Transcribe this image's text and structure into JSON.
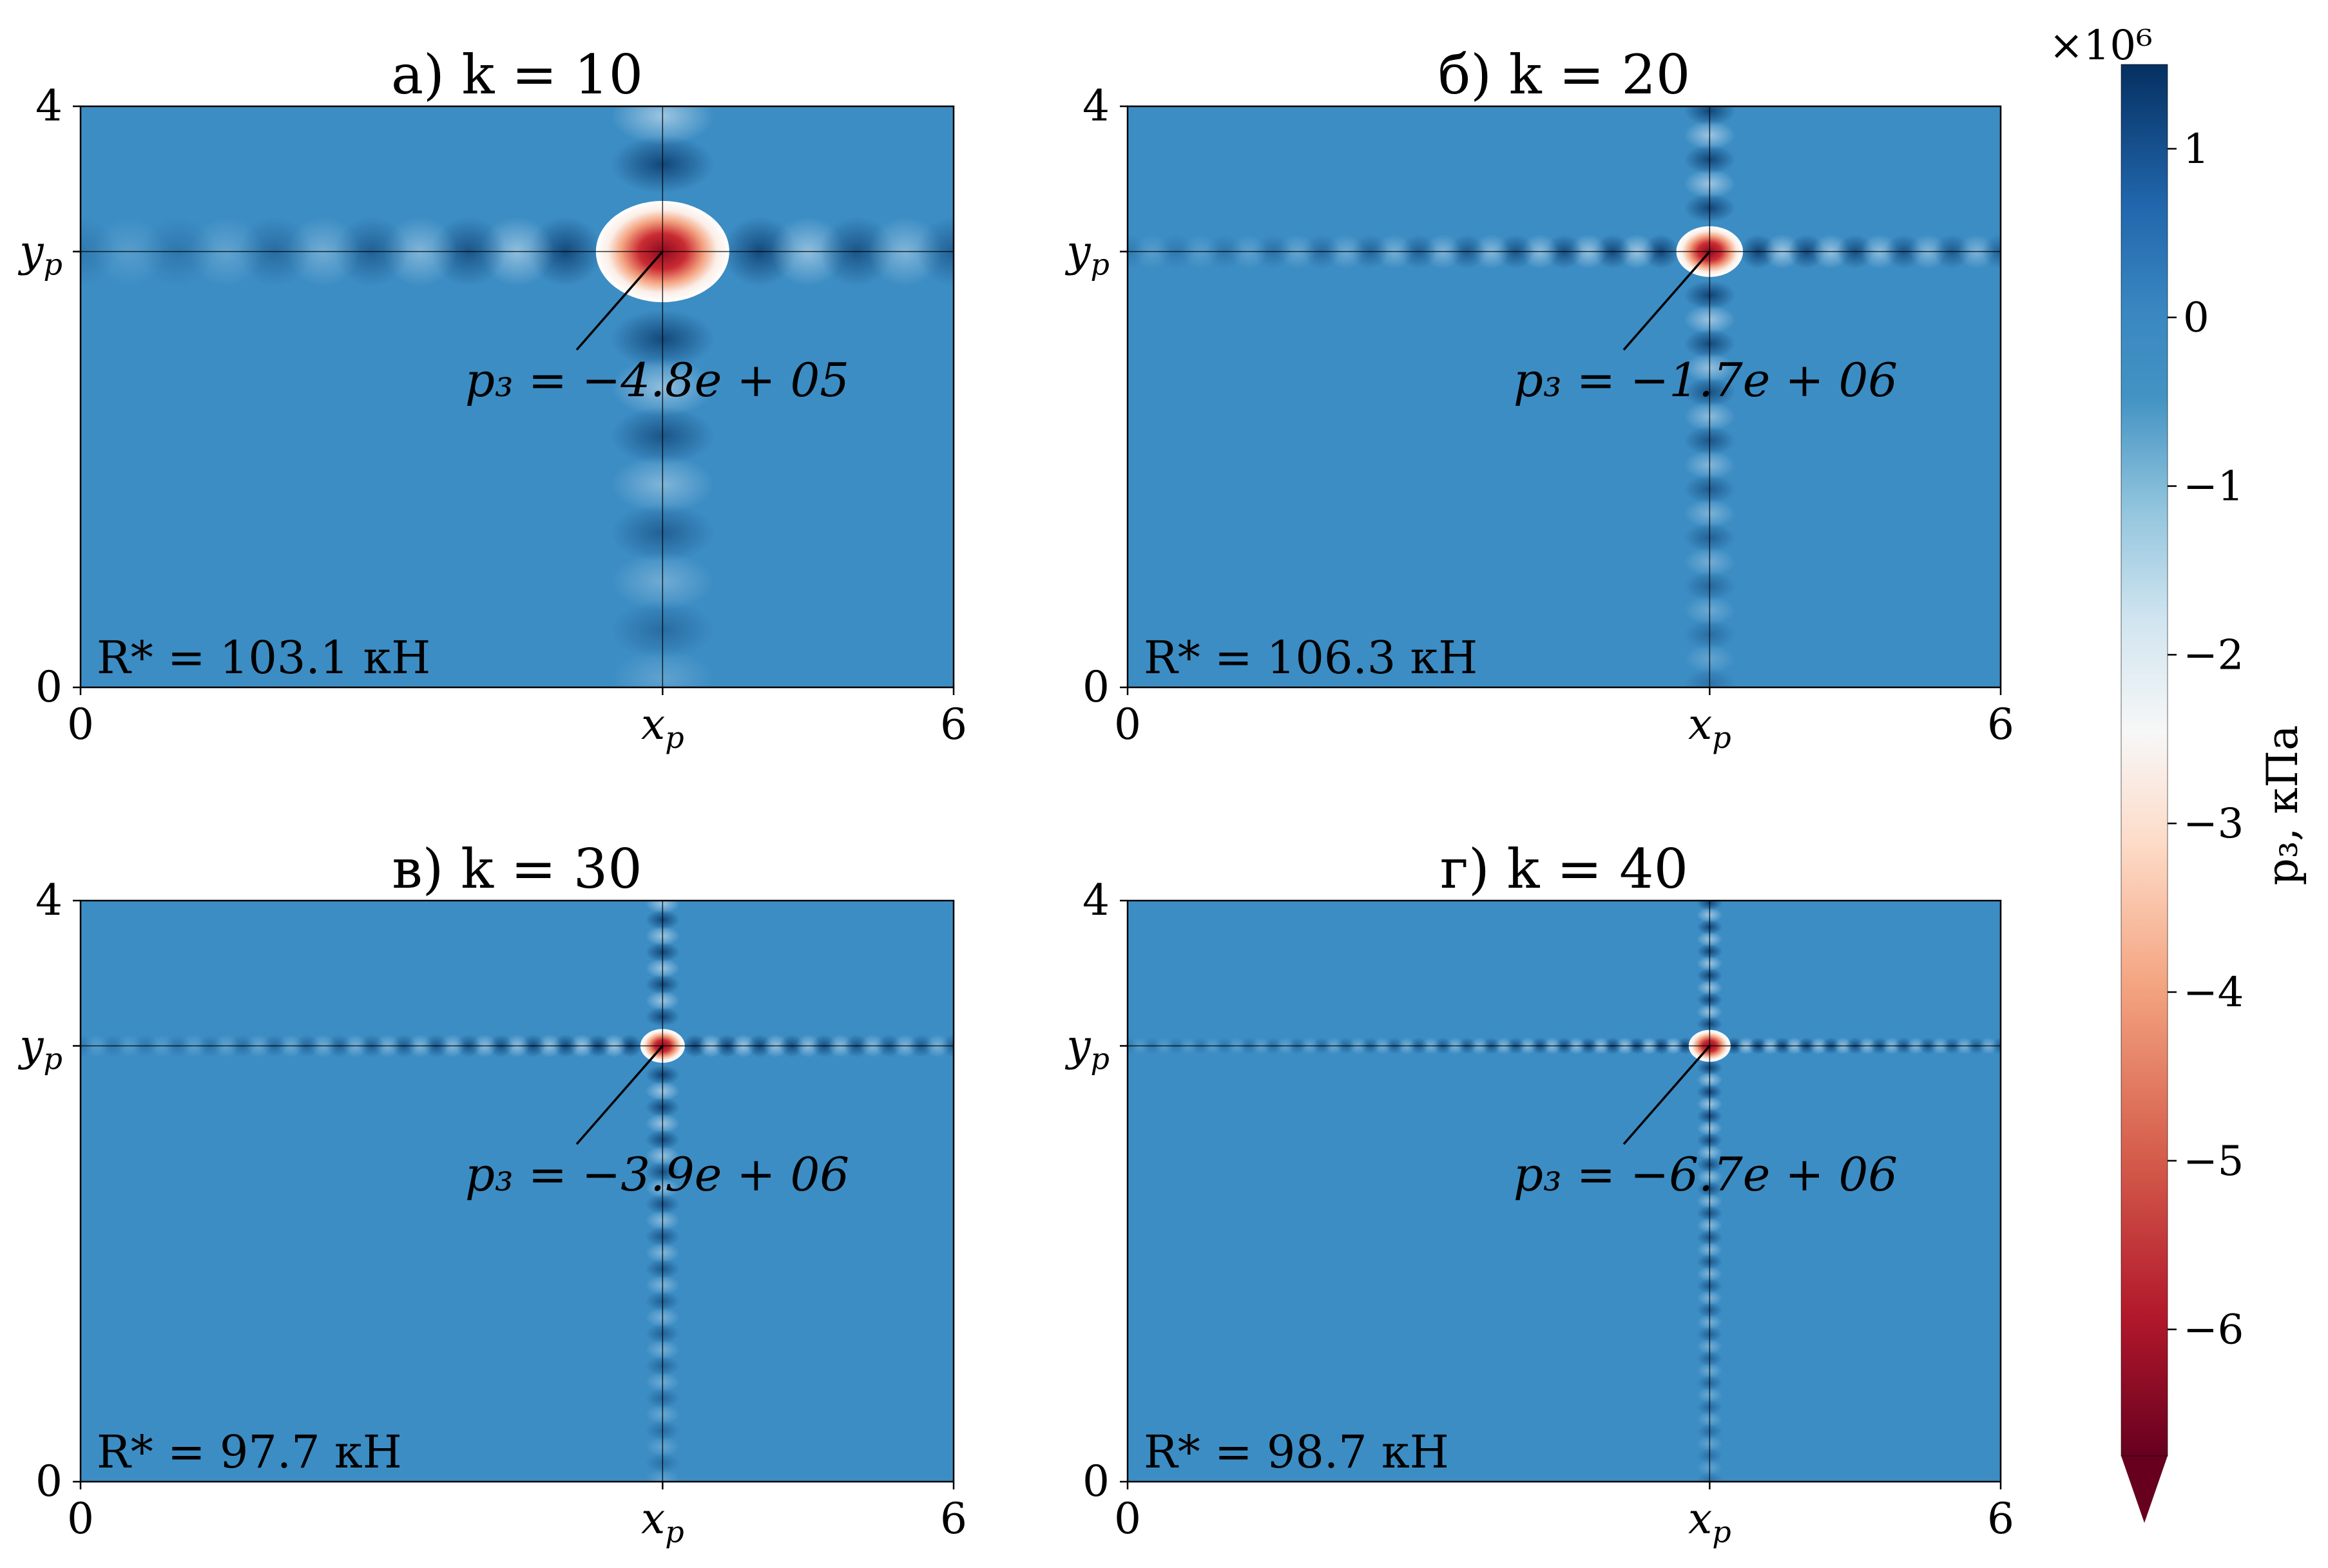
{
  "colors": {
    "field": "#3c8dc4",
    "positive_extreme": "#053061",
    "zero": "#3a88c2",
    "neutral": "#f7f7f7",
    "negative_extreme": "#67001f"
  },
  "colormap": "RdBu",
  "chart_data": [
    {
      "type": "heatmap",
      "title": "а) k = 10",
      "panel_letter": "а)",
      "k": 10,
      "xlim": [
        0,
        6
      ],
      "ylim": [
        0,
        4
      ],
      "x_ticks": [
        "0",
        "x_p",
        "6"
      ],
      "y_ticks": [
        "0",
        "y_p",
        "4"
      ],
      "x_p": 4.0,
      "y_p": 3.0,
      "annotation": "p₃ = −4.8e + 05",
      "p3_peak": -480000,
      "reaction_label": "R* = 103.1 кН",
      "reaction_value": 103.1,
      "reaction_unit": "кН"
    },
    {
      "type": "heatmap",
      "title": "б) k = 20",
      "panel_letter": "б)",
      "k": 20,
      "xlim": [
        0,
        6
      ],
      "ylim": [
        0,
        4
      ],
      "x_ticks": [
        "0",
        "x_p",
        "6"
      ],
      "y_ticks": [
        "0",
        "y_p",
        "4"
      ],
      "x_p": 4.0,
      "y_p": 3.0,
      "annotation": "p₃ = −1.7e + 06",
      "p3_peak": -1700000,
      "reaction_label": "R* = 106.3 кН",
      "reaction_value": 106.3,
      "reaction_unit": "кН"
    },
    {
      "type": "heatmap",
      "title": "в) k = 30",
      "panel_letter": "в)",
      "k": 30,
      "xlim": [
        0,
        6
      ],
      "ylim": [
        0,
        4
      ],
      "x_ticks": [
        "0",
        "x_p",
        "6"
      ],
      "y_ticks": [
        "0",
        "y_p",
        "4"
      ],
      "x_p": 4.0,
      "y_p": 3.0,
      "annotation": "p₃ = −3.9e + 06",
      "p3_peak": -3900000,
      "reaction_label": "R* = 97.7 кН",
      "reaction_value": 97.7,
      "reaction_unit": "кН"
    },
    {
      "type": "heatmap",
      "title": "г) k = 40",
      "panel_letter": "г)",
      "k": 40,
      "xlim": [
        0,
        6
      ],
      "ylim": [
        0,
        4
      ],
      "x_ticks": [
        "0",
        "x_p",
        "6"
      ],
      "y_ticks": [
        "0",
        "y_p",
        "4"
      ],
      "x_p": 4.0,
      "y_p": 3.0,
      "annotation": "p₃ = −6.7e + 06",
      "p3_peak": -6700000,
      "reaction_label": "R* = 98.7 кН",
      "reaction_value": 98.7,
      "reaction_unit": "кН"
    }
  ],
  "colorbar": {
    "label": "p₃, кПа",
    "multiplier": "×10⁶",
    "ticks": [
      "1",
      "0",
      "−1",
      "−2",
      "−3",
      "−4",
      "−5",
      "−6"
    ],
    "tick_values": [
      1,
      0,
      -1,
      -2,
      -3,
      -4,
      -5,
      -6
    ],
    "vmin": -6.75,
    "vmax": 1.5,
    "extend": "min"
  }
}
